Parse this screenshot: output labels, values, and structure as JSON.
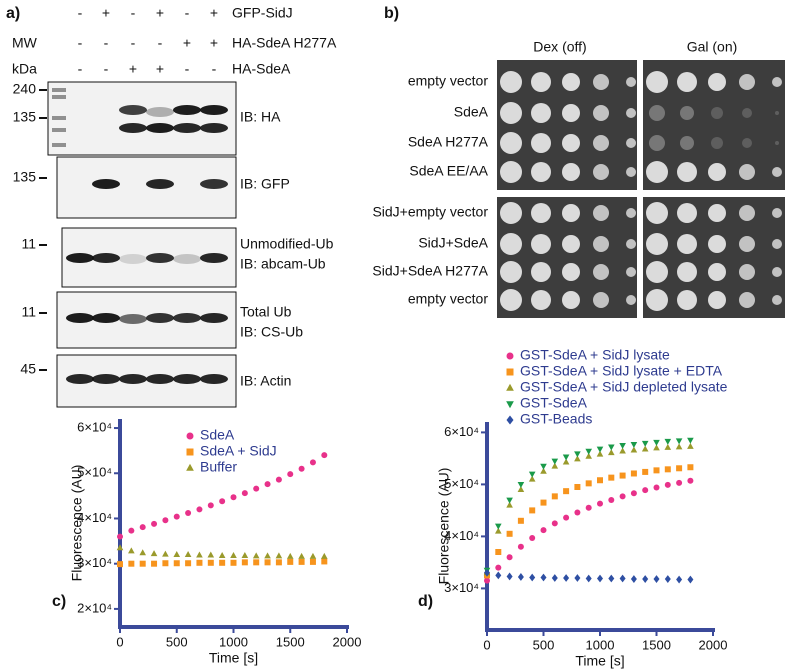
{
  "panel_a": {
    "label": "a)",
    "rows": [
      {
        "label": "GFP-SidJ",
        "signs": [
          "-",
          "+",
          "-",
          "+",
          "-",
          "+"
        ]
      },
      {
        "label": "HA-SdeA H277A",
        "signs": [
          "-",
          "-",
          "-",
          "-",
          "+",
          "+"
        ]
      },
      {
        "label": "HA-SdeA",
        "signs": [
          "-",
          "-",
          "+",
          "+",
          "-",
          "-"
        ]
      }
    ],
    "mw_label": "MW",
    "unit_label": "kDa",
    "blots": [
      {
        "markers": [
          "240",
          "135"
        ],
        "labels": [
          "IB: HA"
        ]
      },
      {
        "markers": [
          "135"
        ],
        "labels": [
          "IB: GFP"
        ]
      },
      {
        "markers": [
          "11"
        ],
        "labels": [
          "Unmodified-Ub",
          "IB: abcam-Ub"
        ]
      },
      {
        "markers": [
          "11"
        ],
        "labels": [
          "Total Ub",
          "IB: CS-Ub"
        ]
      },
      {
        "markers": [
          "45"
        ],
        "labels": [
          "IB: Actin"
        ]
      }
    ]
  },
  "panel_b": {
    "label": "b)",
    "columns": [
      "Dex (off)",
      "Gal (on)"
    ],
    "groups": [
      [
        "empty vector",
        "SdeA",
        "SdeA H277A",
        "SdeA EE/AA"
      ],
      [
        "SidJ+empty vector",
        "SidJ+SdeA",
        "SidJ+SdeA H277A",
        "empty vector"
      ]
    ]
  },
  "chart_data": [
    {
      "type": "scatter",
      "label": "c)",
      "xlabel": "Time [s]",
      "ylabel": "Fluorescence (AU)",
      "xlim": [
        0,
        2000
      ],
      "xticks": [
        0,
        500,
        1000,
        1500,
        2000
      ],
      "ylim": [
        16000,
        62000
      ],
      "yticks": [
        {
          "value": 20000,
          "label": "2×10⁴"
        },
        {
          "value": 30000,
          "label": "3×10⁴"
        },
        {
          "value": 40000,
          "label": "4×10⁴"
        },
        {
          "value": 50000,
          "label": "5×10⁴"
        },
        {
          "value": 60000,
          "label": "6×10⁴"
        }
      ],
      "legend": "top",
      "x": [
        0,
        100,
        200,
        300,
        400,
        500,
        600,
        700,
        800,
        900,
        1000,
        1100,
        1200,
        1300,
        1400,
        1500,
        1600,
        1700,
        1800
      ],
      "series": [
        {
          "name": "SdeA",
          "color": "#e8318a",
          "marker": "circle",
          "values": [
            36000,
            37300,
            38100,
            38800,
            39600,
            40400,
            41200,
            42000,
            42900,
            43800,
            44700,
            45600,
            46600,
            47600,
            48600,
            49800,
            51000,
            52400,
            54000
          ]
        },
        {
          "name": "SdeA + SidJ",
          "color": "#f7941d",
          "marker": "square",
          "values": [
            29900,
            30000,
            30000,
            30000,
            30100,
            30100,
            30100,
            30200,
            30200,
            30200,
            30200,
            30300,
            30300,
            30300,
            30300,
            30400,
            30400,
            30400,
            30500
          ]
        },
        {
          "name": "Buffer",
          "color": "#9a9a2c",
          "marker": "triangle",
          "values": [
            33500,
            32800,
            32400,
            32200,
            32100,
            32000,
            32000,
            31900,
            31900,
            31800,
            31800,
            31800,
            31700,
            31700,
            31700,
            31600,
            31600,
            31600,
            31600
          ]
        }
      ]
    },
    {
      "type": "scatter",
      "label": "d)",
      "xlabel": "Time [s]",
      "ylabel": "Fluorescence (AU)",
      "xlim": [
        0,
        2000
      ],
      "xticks": [
        0,
        500,
        1000,
        1500,
        2000
      ],
      "ylim": [
        22000,
        62000
      ],
      "yticks": [
        {
          "value": 30000,
          "label": "3×10⁴"
        },
        {
          "value": 40000,
          "label": "4×10⁴"
        },
        {
          "value": 50000,
          "label": "5×10⁴"
        },
        {
          "value": 60000,
          "label": "6×10⁴"
        }
      ],
      "legend": "above",
      "x": [
        0,
        100,
        200,
        300,
        400,
        500,
        600,
        700,
        800,
        900,
        1000,
        1100,
        1200,
        1300,
        1400,
        1500,
        1600,
        1700,
        1800
      ],
      "series": [
        {
          "name": "GST-SdeA + SidJ lysate",
          "color": "#e8318a",
          "marker": "circle",
          "values": [
            31500,
            34000,
            36000,
            38000,
            39700,
            41200,
            42500,
            43600,
            44600,
            45500,
            46300,
            47000,
            47700,
            48300,
            48900,
            49400,
            49900,
            50300,
            50700
          ]
        },
        {
          "name": "GST-SdeA + SidJ lysate + EDTA",
          "color": "#f7941d",
          "marker": "square",
          "values": [
            32500,
            37000,
            40500,
            43000,
            45000,
            46500,
            47700,
            48700,
            49500,
            50200,
            50800,
            51300,
            51700,
            52100,
            52400,
            52700,
            52900,
            53100,
            53300
          ]
        },
        {
          "name": "GST-SdeA + SidJ depleted lysate",
          "color": "#9a9a2c",
          "marker": "triangle",
          "values": [
            33000,
            41000,
            46000,
            49000,
            51000,
            52500,
            53500,
            54300,
            54900,
            55400,
            55800,
            56100,
            56400,
            56600,
            56800,
            57000,
            57100,
            57200,
            57300
          ]
        },
        {
          "name": "GST-SdeA",
          "color": "#1a9a4a",
          "marker": "triangle-down",
          "values": [
            33500,
            42000,
            47000,
            50000,
            52000,
            53500,
            54500,
            55300,
            55900,
            56400,
            56800,
            57200,
            57500,
            57700,
            57900,
            58100,
            58300,
            58400,
            58500
          ]
        },
        {
          "name": "GST-Beads",
          "color": "#2e4fa3",
          "marker": "diamond",
          "values": [
            33000,
            32500,
            32300,
            32200,
            32100,
            32100,
            32000,
            32000,
            32000,
            31900,
            31900,
            31900,
            31900,
            31800,
            31800,
            31800,
            31800,
            31700,
            31700
          ]
        }
      ]
    }
  ]
}
